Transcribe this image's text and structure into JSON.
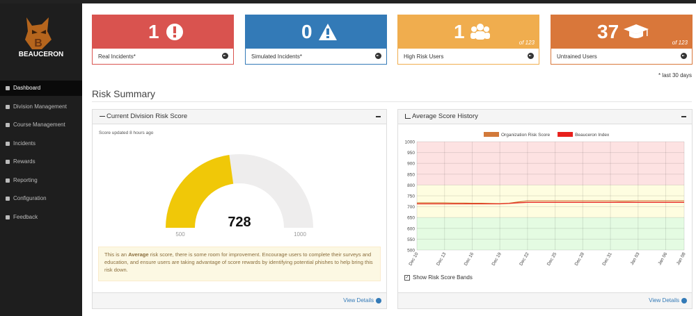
{
  "sidebar": {
    "brand": "BEAUCERON",
    "menu": [
      "Dashboard",
      "Division Management",
      "Course Management",
      "Incidents",
      "Rewards",
      "Reporting",
      "Configuration",
      "Feedback"
    ]
  },
  "cards": [
    {
      "value": 1,
      "label": "Real Incidents*",
      "color": "#d9534f"
    },
    {
      "value": 0,
      "label": "Simulated Incidents*",
      "color": "#337ab7"
    },
    {
      "value": 1,
      "of": "of 123",
      "label": "High Risk Users",
      "color": "#f0ad4e"
    },
    {
      "value": 37,
      "of": "of 123",
      "label": "Untrained Users",
      "color": "#d9773a"
    }
  ],
  "footnote": "* last 30 days",
  "section_title": "Risk Summary",
  "risk_panel": {
    "title": "Current Division Risk Score",
    "updated": "Score updated 8 hours ago",
    "gauge": {
      "min": 500,
      "max": 1000,
      "value": 728,
      "color": "#f0c808",
      "track": "#eeeded"
    },
    "message": {
      "before": "This is an ",
      "bold": "Average",
      "after": " risk score, there is some room for improvement. Encourage users to complete their surveys and education, and ensure users are taking advantage of score rewards by identifying potential phishes to help bring this risk down."
    },
    "link": "View Details"
  },
  "history_panel": {
    "title": "Average Score History",
    "checkbox": "Show Risk Score Bands",
    "link": "View Details",
    "chart_data": {
      "type": "line",
      "categories": [
        "Dec 10",
        null,
        null,
        "Dec 13",
        null,
        null,
        "Dec 16",
        null,
        null,
        "Dec 19",
        null,
        null,
        "Dec 22",
        null,
        null,
        "Dec 25",
        null,
        null,
        "Dec 28",
        null,
        null,
        "Dec 31",
        null,
        null,
        "Jan 03",
        null,
        null,
        "Jan 06",
        null,
        "Jan 08"
      ],
      "series": [
        {
          "name": "Organization Risk Score",
          "color": "#d2793a",
          "values": [
            718,
            718,
            718,
            718,
            717,
            717,
            716,
            716,
            715,
            714,
            716,
            722,
            727,
            727,
            727,
            727,
            727,
            727,
            727,
            727,
            727,
            727,
            726,
            726,
            727,
            727,
            727,
            727,
            727,
            727
          ]
        },
        {
          "name": "Beauceron Index",
          "color": "#e8201c",
          "values": [
            713,
            713,
            713,
            713,
            713,
            713,
            713,
            713,
            713,
            713,
            715,
            718,
            720,
            720,
            720,
            720,
            720,
            720,
            720,
            720,
            720,
            720,
            720,
            720,
            720,
            720,
            720,
            720,
            720,
            720
          ]
        }
      ],
      "ylim": [
        500,
        1000
      ],
      "yticks": [
        500,
        550,
        600,
        650,
        700,
        750,
        800,
        850,
        900,
        950,
        1000
      ],
      "grid": true,
      "bands": [
        {
          "from": 800,
          "to": 1000,
          "color": "#fde2e2"
        },
        {
          "from": 650,
          "to": 800,
          "color": "#fefde0"
        },
        {
          "from": 500,
          "to": 650,
          "color": "#e4fbe2"
        }
      ]
    }
  }
}
